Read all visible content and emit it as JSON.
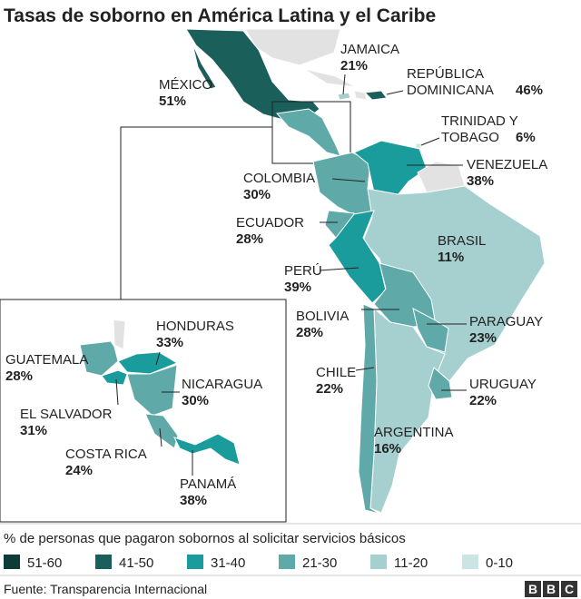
{
  "title": "Tasas de soborno en América Latina y el Caribe",
  "countries": [
    {
      "name": [
        "MÉXICO"
      ],
      "value": "51%"
    },
    {
      "name": [
        "JAMAICA"
      ],
      "value": "21%"
    },
    {
      "name": [
        "REPÚBLICA",
        "DOMINICANA"
      ],
      "value": "46%"
    },
    {
      "name": [
        "TRINIDAD Y",
        "TOBAGO"
      ],
      "value": "6%"
    },
    {
      "name": [
        "VENEZUELA"
      ],
      "value": "38%"
    },
    {
      "name": [
        "COLOMBIA"
      ],
      "value": "30%"
    },
    {
      "name": [
        "ECUADOR"
      ],
      "value": "28%"
    },
    {
      "name": [
        "BRASIL"
      ],
      "value": "11%"
    },
    {
      "name": [
        "PERÚ"
      ],
      "value": "39%"
    },
    {
      "name": [
        "BOLIVIA"
      ],
      "value": "28%"
    },
    {
      "name": [
        "PARAGUAY"
      ],
      "value": "23%"
    },
    {
      "name": [
        "CHILE"
      ],
      "value": "22%"
    },
    {
      "name": [
        "URUGUAY"
      ],
      "value": "22%"
    },
    {
      "name": [
        "ARGENTINA"
      ],
      "value": "16%"
    },
    {
      "name": [
        "HONDURAS"
      ],
      "value": "33%"
    },
    {
      "name": [
        "GUATEMALA"
      ],
      "value": "28%"
    },
    {
      "name": [
        "NICARAGUA"
      ],
      "value": "30%"
    },
    {
      "name": [
        "EL SALVADOR"
      ],
      "value": "31%"
    },
    {
      "name": [
        "COSTA RICA"
      ],
      "value": "24%"
    },
    {
      "name": [
        "PANAMÁ"
      ],
      "value": "38%"
    }
  ],
  "legend": {
    "title": "% de personas que pagaron sobornos al solicitar servicios básicos",
    "items": [
      {
        "label": "51-60",
        "color": "#0d3b37"
      },
      {
        "label": "41-50",
        "color": "#1b5f5b"
      },
      {
        "label": "31-40",
        "color": "#1a9c9c"
      },
      {
        "label": "21-30",
        "color": "#5faaa9"
      },
      {
        "label": "11-20",
        "color": "#a5d0cf"
      },
      {
        "label": "0-10",
        "color": "#cbe5e4"
      }
    ]
  },
  "source": "Fuente: Transparencia Internacional",
  "logo": [
    "B",
    "B",
    "C"
  ]
}
